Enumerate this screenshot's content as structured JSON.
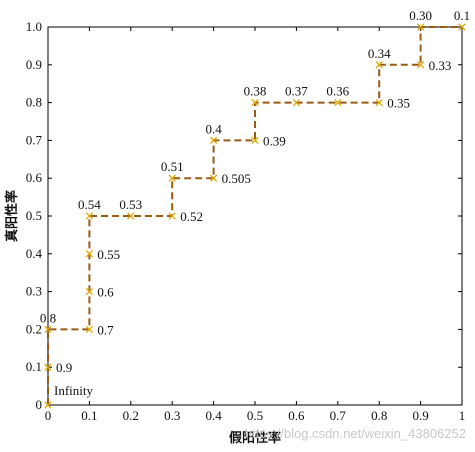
{
  "chart_data": {
    "type": "line",
    "xlabel": "假阳性率",
    "ylabel": "真阳性率",
    "xlim": [
      0,
      1
    ],
    "ylim": [
      0,
      1
    ],
    "x_ticks": [
      "0",
      "0.1",
      "0.2",
      "0.3",
      "0.4",
      "0.5",
      "0.6",
      "0.7",
      "0.8",
      "0.9",
      "1"
    ],
    "y_ticks": [
      "0",
      "0.1",
      "0.2",
      "0.3",
      "0.4",
      "0.5",
      "0.6",
      "0.7",
      "0.8",
      "0.9",
      "1.0"
    ],
    "grid": false,
    "series": [
      {
        "style": "dashed step line with x markers",
        "points": [
          {
            "x": 0.0,
            "y": 0.0,
            "label": "Infinity",
            "pos": "r-above"
          },
          {
            "x": 0.0,
            "y": 0.1,
            "label": "0.9",
            "pos": "right"
          },
          {
            "x": 0.0,
            "y": 0.2,
            "label": "0.8",
            "pos": "above"
          },
          {
            "x": 0.1,
            "y": 0.2,
            "label": "0.7",
            "pos": "right"
          },
          {
            "x": 0.1,
            "y": 0.3,
            "label": "0.6",
            "pos": "right"
          },
          {
            "x": 0.1,
            "y": 0.4,
            "label": "0.55",
            "pos": "right"
          },
          {
            "x": 0.1,
            "y": 0.5,
            "label": "0.54",
            "pos": "above"
          },
          {
            "x": 0.2,
            "y": 0.5,
            "label": "0.53",
            "pos": "above"
          },
          {
            "x": 0.3,
            "y": 0.5,
            "label": "0.52",
            "pos": "right"
          },
          {
            "x": 0.3,
            "y": 0.6,
            "label": "0.51",
            "pos": "above"
          },
          {
            "x": 0.4,
            "y": 0.6,
            "label": "0.505",
            "pos": "right"
          },
          {
            "x": 0.4,
            "y": 0.7,
            "label": "0.4",
            "pos": "above"
          },
          {
            "x": 0.5,
            "y": 0.7,
            "label": "0.39",
            "pos": "right"
          },
          {
            "x": 0.5,
            "y": 0.8,
            "label": "0.38",
            "pos": "above"
          },
          {
            "x": 0.6,
            "y": 0.8,
            "label": "0.37",
            "pos": "above"
          },
          {
            "x": 0.7,
            "y": 0.8,
            "label": "0.36",
            "pos": "above"
          },
          {
            "x": 0.8,
            "y": 0.8,
            "label": "0.35",
            "pos": "right"
          },
          {
            "x": 0.8,
            "y": 0.9,
            "label": "0.34",
            "pos": "above"
          },
          {
            "x": 0.9,
            "y": 0.9,
            "label": "0.33",
            "pos": "right"
          },
          {
            "x": 0.9,
            "y": 1.0,
            "label": "0.30",
            "pos": "above"
          },
          {
            "x": 1.0,
            "y": 1.0,
            "label": "0.1",
            "pos": "above"
          }
        ]
      }
    ]
  },
  "colors": {
    "line": "#9b5a14",
    "marker": "#e0a800",
    "axis": "#000000"
  },
  "watermark": "https://blog.csdn.net/weixin_43806252"
}
